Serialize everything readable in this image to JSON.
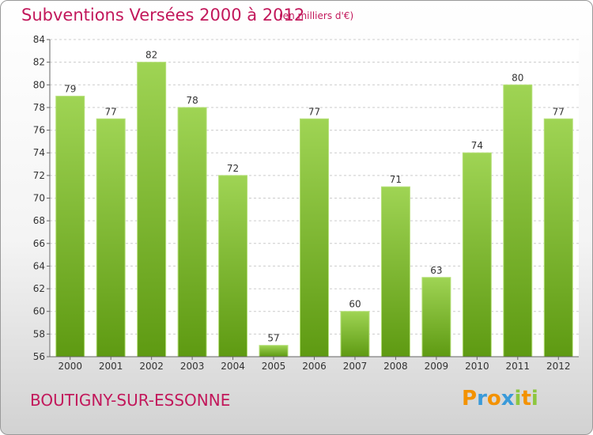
{
  "title": "Subventions Versées 2000 à 2012",
  "subtitle": "(en milliers d'€)",
  "commune": "BOUTIGNY-SUR-ESSONNE",
  "brand": {
    "letters": [
      "P",
      "r",
      "o",
      "x",
      "i",
      "t",
      "i"
    ],
    "colors": [
      "#f39200",
      "#3a9ad9",
      "#f39200",
      "#3a9ad9",
      "#8dc63f",
      "#f39200",
      "#8dc63f"
    ]
  },
  "colors": {
    "bar_top": "#9fd454",
    "bar_bottom": "#5e9a12",
    "title": "#c2185b"
  },
  "chart_data": {
    "type": "bar",
    "title": "Subventions Versées 2000 à 2012",
    "subtitle": "(en milliers d'€)",
    "categories": [
      "2000",
      "2001",
      "2002",
      "2003",
      "2004",
      "2005",
      "2006",
      "2007",
      "2008",
      "2009",
      "2010",
      "2011",
      "2012"
    ],
    "values": [
      79,
      77,
      82,
      78,
      72,
      57,
      77,
      60,
      71,
      63,
      74,
      80,
      77
    ],
    "ylim": [
      56,
      84
    ],
    "yticks": [
      56,
      58,
      60,
      62,
      64,
      66,
      68,
      70,
      72,
      74,
      76,
      78,
      80,
      82,
      84
    ],
    "grid": true,
    "legend": "none"
  }
}
